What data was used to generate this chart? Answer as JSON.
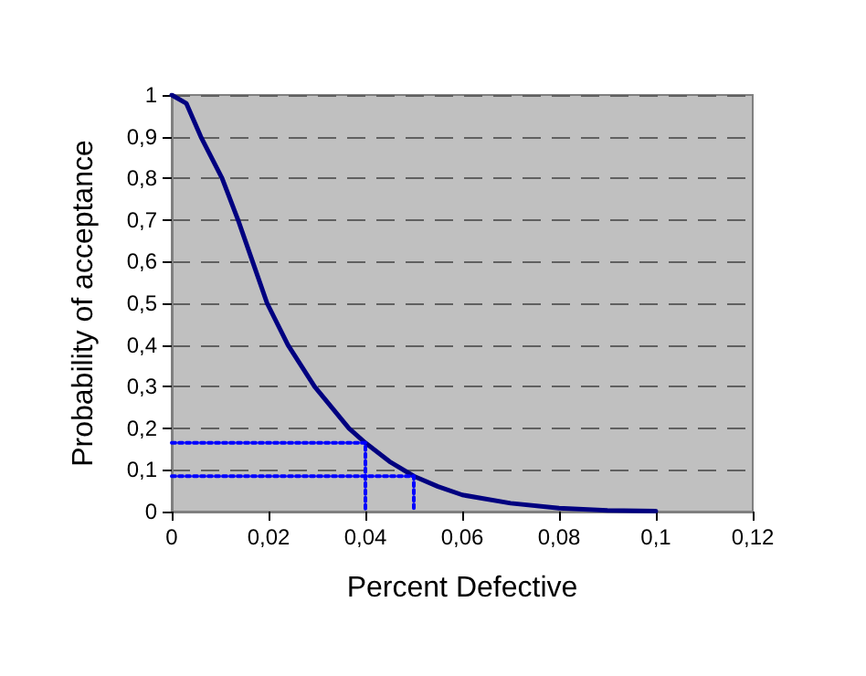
{
  "chart_data": {
    "type": "line",
    "xlabel": "Percent Defective",
    "ylabel": "Probability of acceptance",
    "xlim": [
      0,
      0.12
    ],
    "xticks": [
      {
        "value": 0,
        "label": "0"
      },
      {
        "value": 0.02,
        "label": "0,02"
      },
      {
        "value": 0.04,
        "label": "0,04"
      },
      {
        "value": 0.06,
        "label": "0,06"
      },
      {
        "value": 0.08,
        "label": "0,08"
      },
      {
        "value": 0.1,
        "label": "0,1"
      },
      {
        "value": 0.12,
        "label": "0,12"
      }
    ],
    "ylim": [
      0,
      1
    ],
    "yticks": [
      {
        "value": 0,
        "label": "0"
      },
      {
        "value": 0.1,
        "label": "0,1"
      },
      {
        "value": 0.2,
        "label": "0,2"
      },
      {
        "value": 0.3,
        "label": "0,3"
      },
      {
        "value": 0.4,
        "label": "0,4"
      },
      {
        "value": 0.5,
        "label": "0,5"
      },
      {
        "value": 0.6,
        "label": "0,6"
      },
      {
        "value": 0.7,
        "label": "0,7"
      },
      {
        "value": 0.8,
        "label": "0,8"
      },
      {
        "value": 0.9,
        "label": "0,9"
      },
      {
        "value": 1,
        "label": "1"
      }
    ],
    "grid": "y",
    "marker": "none",
    "series": [
      {
        "color": "#000080",
        "line_style": "solid",
        "x": [
          0,
          0.003,
          0.006,
          0.0104,
          0.0137,
          0.0167,
          0.0197,
          0.024,
          0.0295,
          0.0366,
          0.04,
          0.045,
          0.05,
          0.055,
          0.06,
          0.07,
          0.08,
          0.09,
          0.1
        ],
        "values": [
          1,
          0.98,
          0.9,
          0.8,
          0.7,
          0.6,
          0.5,
          0.4,
          0.3,
          0.2,
          0.165,
          0.12,
          0.085,
          0.06,
          0.04,
          0.02,
          0.008,
          0.003,
          0.001
        ]
      },
      {
        "color": "#0000ff",
        "line_style": "dotted",
        "x": [
          0,
          0.04,
          0.04
        ],
        "values": [
          0.165,
          0.165,
          0
        ]
      },
      {
        "color": "#0000ff",
        "line_style": "dotted",
        "x": [
          0,
          0.05,
          0.05
        ],
        "values": [
          0.085,
          0.085,
          0
        ]
      }
    ]
  }
}
